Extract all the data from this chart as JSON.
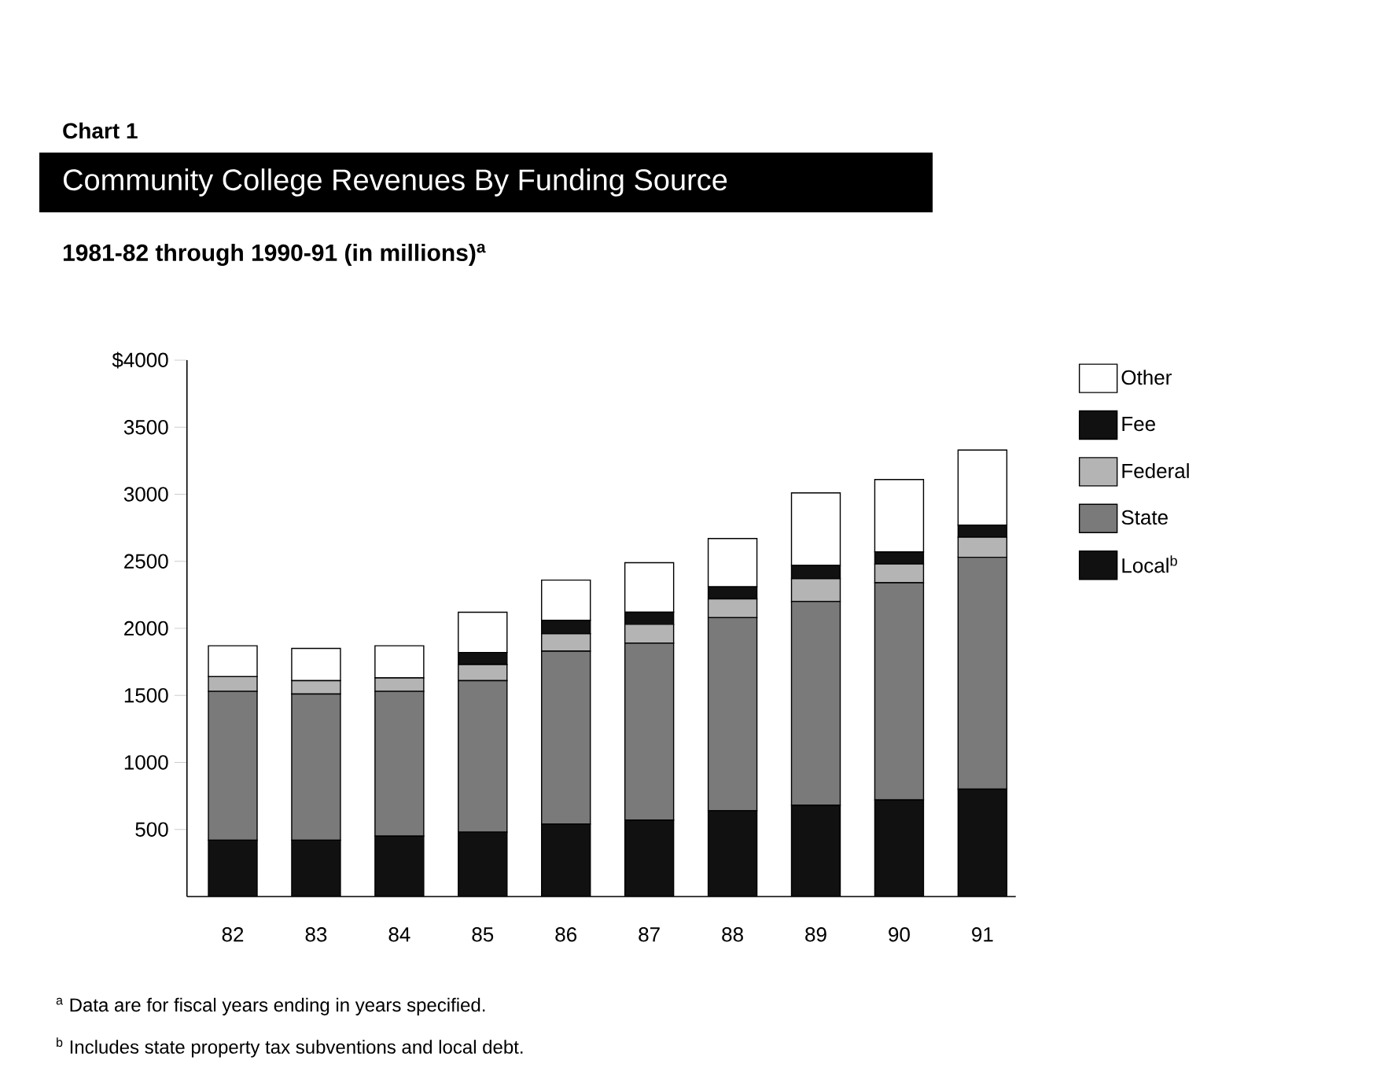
{
  "chart_data": {
    "type": "bar",
    "stacked": true,
    "title": "Community College Revenues By Funding Source",
    "subtitle": "1981-82 through 1990-91 (in millions)$^{a}$",
    "categories": [
      "82",
      "83",
      "84",
      "85",
      "86",
      "87",
      "88",
      "89",
      "90",
      "91"
    ],
    "series": [
      {
        "name": "Local$^{b}$",
        "color": "#111111",
        "values": [
          420,
          420,
          450,
          480,
          540,
          570,
          640,
          680,
          720,
          800
        ]
      },
      {
        "name": "State",
        "color": "#7a7a7a",
        "values": [
          1110,
          1090,
          1080,
          1130,
          1290,
          1320,
          1440,
          1520,
          1620,
          1730
        ]
      },
      {
        "name": "Federal",
        "color": "#b4b4b4",
        "values": [
          110,
          100,
          100,
          120,
          130,
          140,
          140,
          170,
          140,
          150
        ]
      },
      {
        "name": "Fee",
        "color": "#111111",
        "values": [
          0,
          0,
          0,
          90,
          100,
          90,
          90,
          100,
          90,
          90
        ]
      },
      {
        "name": "Other",
        "color": "#ffffff",
        "values": [
          230,
          240,
          240,
          300,
          300,
          370,
          360,
          540,
          540,
          560
        ]
      }
    ],
    "ylim": [
      0,
      4000
    ],
    "yticks": [
      500,
      1000,
      1500,
      2000,
      2500,
      3000,
      3500,
      {
        "value": 4000,
        "label": "$4000"
      }
    ],
    "legend": "right",
    "annotations": [
      "Chart 1",
      "$^{a}$ Data are for fiscal years ending in years specified.",
      "$^{b}$ Includes state property tax subventions and local debt."
    ]
  }
}
